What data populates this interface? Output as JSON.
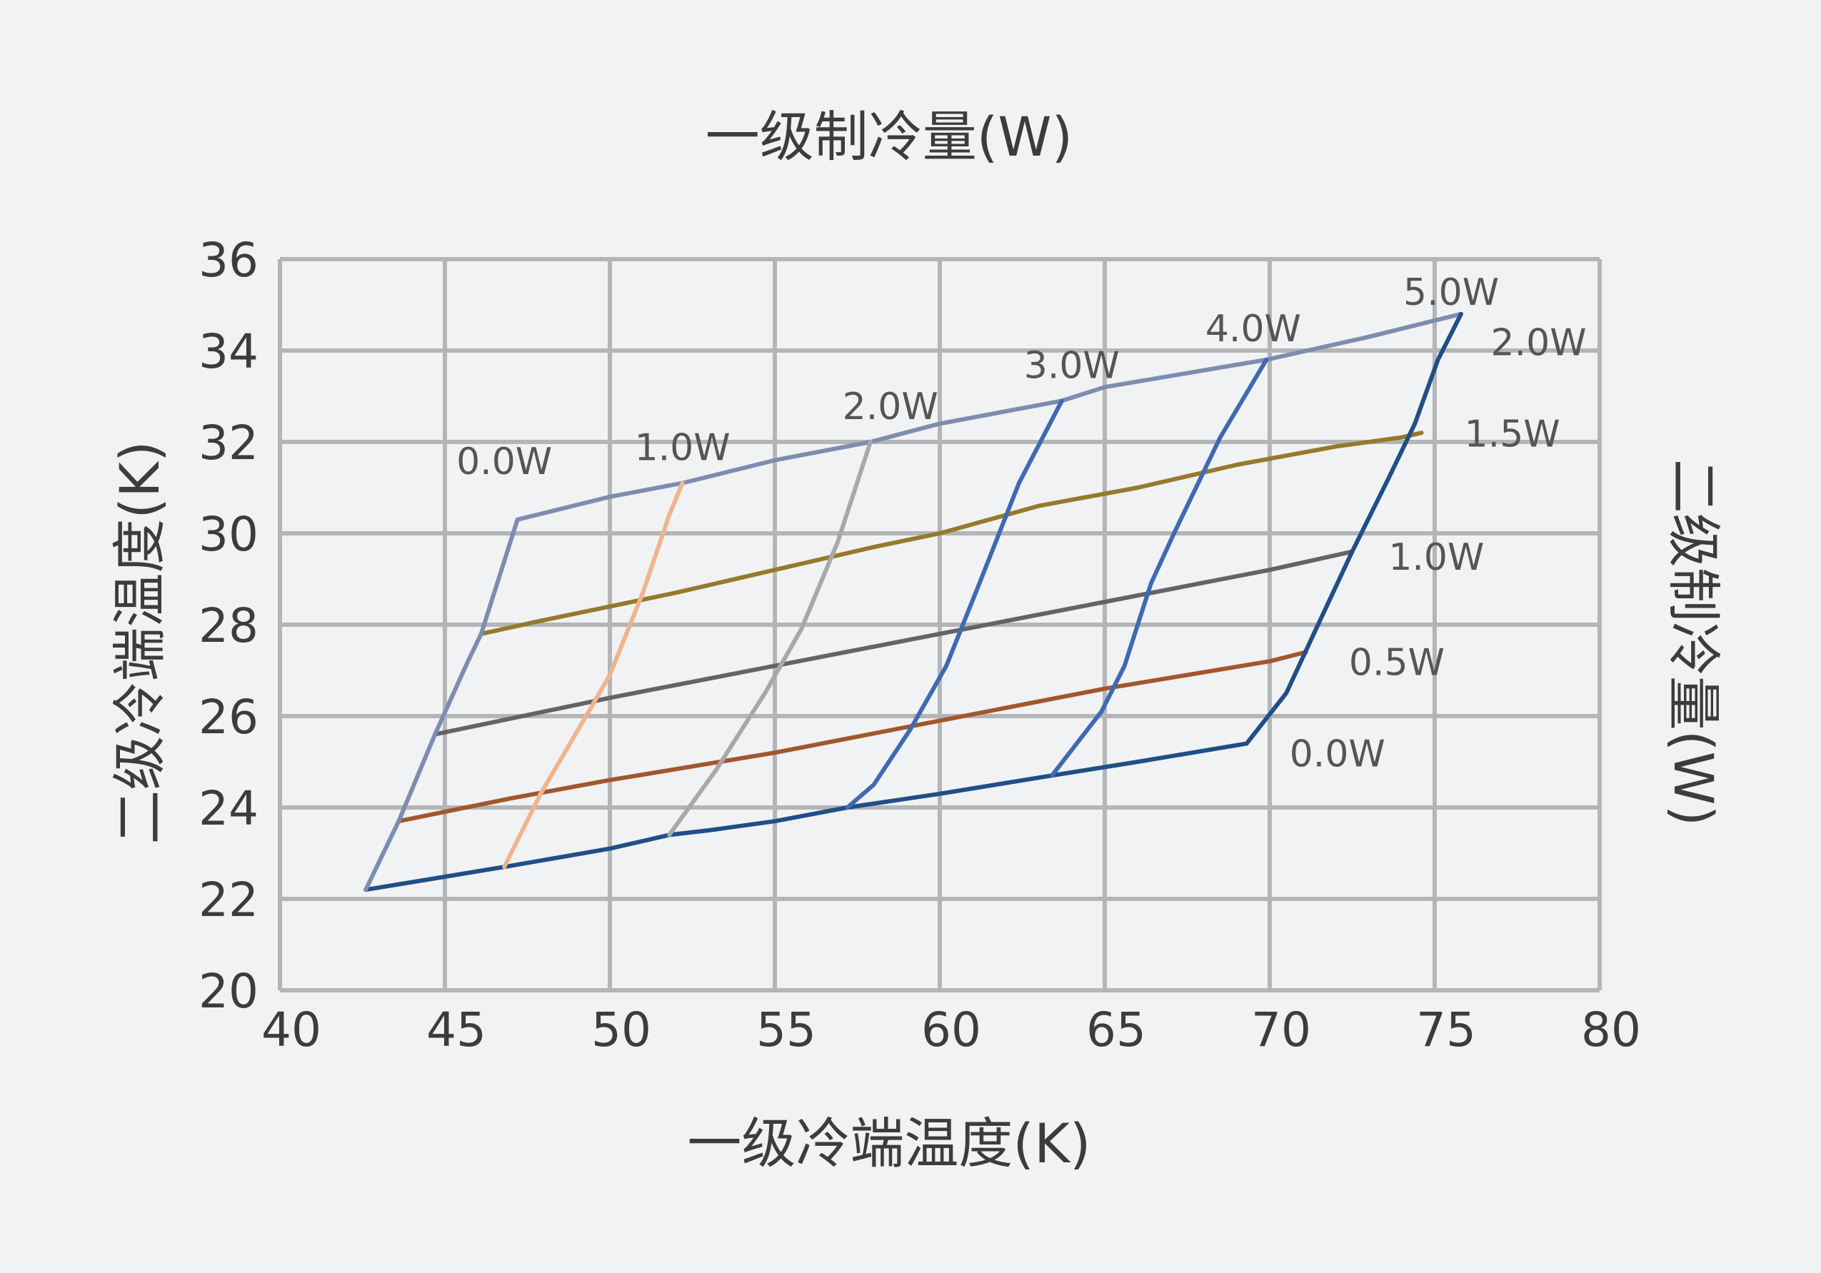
{
  "chart_data": {
    "type": "line",
    "title": "一级制冷量(W)",
    "xlabel": "一级冷端温度(K)",
    "ylabel": "二级冷端温度(K)",
    "y2label": "二级制冷量(W)",
    "xlim": [
      40,
      80
    ],
    "ylim": [
      20,
      36
    ],
    "xticks": [
      "40",
      "45",
      "50",
      "55",
      "60",
      "65",
      "70",
      "75",
      "80"
    ],
    "yticks": [
      "20",
      "22",
      "24",
      "26",
      "28",
      "30",
      "32",
      "34",
      "36"
    ],
    "grid": true,
    "colors": {
      "background": "#f0f2f4",
      "grid": "#b3b5b7",
      "text": "#3c3c3c",
      "label_text": "#555555"
    },
    "first_stage_series": [
      {
        "label": "0.0W",
        "color": "#7d8db0",
        "points": [
          [
            42.6,
            22.2
          ],
          [
            43.6,
            23.7
          ],
          [
            44.7,
            25.6
          ],
          [
            45.7,
            27.2
          ],
          [
            46.1,
            27.8
          ],
          [
            47.2,
            30.3
          ]
        ]
      },
      {
        "label": "1.0W",
        "color": "#f0b48c",
        "points": [
          [
            46.8,
            22.7
          ],
          [
            47.9,
            24.3
          ],
          [
            49.2,
            25.9
          ],
          [
            50.0,
            26.9
          ],
          [
            51.0,
            28.7
          ],
          [
            51.8,
            30.4
          ],
          [
            52.2,
            31.1
          ]
        ]
      },
      {
        "label": "2.0W",
        "color": "#a8a8a8",
        "points": [
          [
            51.8,
            23.4
          ],
          [
            53.2,
            24.8
          ],
          [
            54.7,
            26.5
          ],
          [
            55.8,
            27.9
          ],
          [
            56.9,
            29.8
          ],
          [
            57.9,
            32.0
          ]
        ]
      },
      {
        "label": "3.0W",
        "color": "#3f6ab2",
        "points": [
          [
            57.2,
            24.0
          ],
          [
            58.0,
            24.5
          ],
          [
            59.1,
            25.7
          ],
          [
            60.2,
            27.1
          ],
          [
            61.2,
            28.9
          ],
          [
            62.4,
            31.1
          ],
          [
            63.7,
            32.9
          ]
        ]
      },
      {
        "label": "4.0W",
        "color": "#3f6ab2",
        "points": [
          [
            63.4,
            24.7
          ],
          [
            64.9,
            26.1
          ],
          [
            65.6,
            27.1
          ],
          [
            66.4,
            28.9
          ],
          [
            67.1,
            30.0
          ],
          [
            68.5,
            32.1
          ],
          [
            69.9,
            33.8
          ]
        ]
      },
      {
        "label": "5.0W",
        "color": "#1f4f86",
        "points": [
          [
            69.3,
            25.4
          ],
          [
            70.5,
            26.5
          ],
          [
            71.4,
            27.9
          ],
          [
            72.5,
            29.6
          ],
          [
            73.6,
            31.2
          ],
          [
            74.4,
            32.4
          ],
          [
            75.1,
            33.8
          ],
          [
            75.8,
            34.8
          ]
        ]
      }
    ],
    "second_stage_series": [
      {
        "label": "2.0W",
        "color": "#7d8db0",
        "points": [
          [
            47.2,
            30.3
          ],
          [
            50.0,
            30.8
          ],
          [
            52.2,
            31.1
          ],
          [
            55.0,
            31.6
          ],
          [
            57.9,
            32.0
          ],
          [
            60.0,
            32.4
          ],
          [
            63.7,
            32.9
          ],
          [
            65.0,
            33.2
          ],
          [
            69.9,
            33.8
          ],
          [
            73.0,
            34.3
          ],
          [
            75.8,
            34.8
          ]
        ]
      },
      {
        "label": "1.5W",
        "color": "#957a2a",
        "points": [
          [
            46.1,
            27.8
          ],
          [
            48.0,
            28.1
          ],
          [
            50.0,
            28.4
          ],
          [
            52.0,
            28.7
          ],
          [
            55.0,
            29.2
          ],
          [
            58.0,
            29.7
          ],
          [
            60.0,
            30.0
          ],
          [
            63.0,
            30.6
          ],
          [
            66.0,
            31.0
          ],
          [
            69.0,
            31.5
          ],
          [
            72.0,
            31.9
          ],
          [
            74.0,
            32.1
          ],
          [
            74.6,
            32.2
          ]
        ]
      },
      {
        "label": "1.0W",
        "color": "#646464",
        "points": [
          [
            44.7,
            25.6
          ],
          [
            50.0,
            26.4
          ],
          [
            55.0,
            27.1
          ],
          [
            60.0,
            27.8
          ],
          [
            65.0,
            28.5
          ],
          [
            70.0,
            29.2
          ],
          [
            72.5,
            29.6
          ]
        ]
      },
      {
        "label": "0.5W",
        "color": "#a3562c",
        "points": [
          [
            43.6,
            23.7
          ],
          [
            47.0,
            24.2
          ],
          [
            50.0,
            24.6
          ],
          [
            55.0,
            25.2
          ],
          [
            60.0,
            25.9
          ],
          [
            65.0,
            26.6
          ],
          [
            70.0,
            27.2
          ],
          [
            71.1,
            27.4
          ]
        ]
      },
      {
        "label": "0.0W",
        "color": "#1f4f86",
        "points": [
          [
            42.6,
            22.2
          ],
          [
            46.8,
            22.7
          ],
          [
            50.0,
            23.1
          ],
          [
            51.8,
            23.4
          ],
          [
            53.0,
            23.5
          ],
          [
            55.0,
            23.7
          ],
          [
            57.2,
            24.0
          ],
          [
            60.0,
            24.3
          ],
          [
            63.4,
            24.7
          ],
          [
            66.0,
            25.0
          ],
          [
            69.3,
            25.4
          ]
        ]
      }
    ],
    "annotations": [
      {
        "text": "0.0W",
        "x": 46.8,
        "y": 31.3,
        "anchor": "middle"
      },
      {
        "text": "1.0W",
        "x": 52.2,
        "y": 31.6,
        "anchor": "middle"
      },
      {
        "text": "2.0W",
        "x": 58.5,
        "y": 32.5,
        "anchor": "middle"
      },
      {
        "text": "3.0W",
        "x": 64.0,
        "y": 33.4,
        "anchor": "middle"
      },
      {
        "text": "4.0W",
        "x": 69.5,
        "y": 34.2,
        "anchor": "middle"
      },
      {
        "text": "5.0W",
        "x": 75.5,
        "y": 35.0,
        "anchor": "middle"
      },
      {
        "text": "2.0W",
        "x": 76.7,
        "y": 33.9,
        "anchor": "start"
      },
      {
        "text": "1.5W",
        "x": 75.9,
        "y": 31.9,
        "anchor": "start"
      },
      {
        "text": "1.0W",
        "x": 73.6,
        "y": 29.2,
        "anchor": "start"
      },
      {
        "text": "0.5W",
        "x": 72.4,
        "y": 26.9,
        "anchor": "start"
      },
      {
        "text": "0.0W",
        "x": 70.6,
        "y": 24.9,
        "anchor": "start"
      }
    ]
  }
}
